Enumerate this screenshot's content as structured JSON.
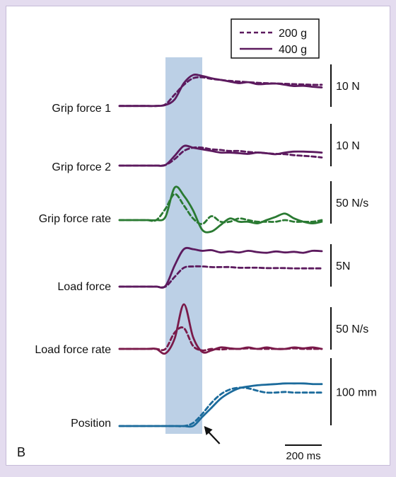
{
  "panel_label": "B",
  "colors": {
    "frame": "#e4dcef",
    "shade": "#bcd0e6",
    "purple": "#5c1a5e",
    "green": "#2a7a32",
    "maroon": "#7a1a4a",
    "blue": "#1c6b9c"
  },
  "chart_data": {
    "type": "line",
    "x_unit": "ms",
    "x": [
      -250,
      -200,
      -150,
      -100,
      -50,
      0,
      50,
      100,
      150,
      200,
      250,
      300,
      350,
      400,
      450,
      500,
      550,
      600,
      650,
      700,
      750,
      800,
      850
    ],
    "highlight": {
      "x0": 0,
      "x1": 200
    },
    "arrow_x": 210,
    "legend": {
      "placement": "top-right",
      "entries": [
        {
          "label": "200 g",
          "style": "dashed"
        },
        {
          "label": "400 g",
          "style": "solid"
        }
      ]
    },
    "time_scale_bar": {
      "label": "200 ms",
      "duration": 200
    },
    "panels": [
      {
        "label": "Grip force 1",
        "scale_label": "10 N",
        "color": "#5c1a5e",
        "series": [
          {
            "name": "200 g",
            "values": [
              0.05,
              0.05,
              0.05,
              0.05,
              0.05,
              0.1,
              0.4,
              0.7,
              0.9,
              0.93,
              0.88,
              0.85,
              0.82,
              0.8,
              0.78,
              0.76,
              0.75,
              0.74,
              0.73,
              0.72,
              0.71,
              0.7,
              0.7
            ]
          },
          {
            "name": "400 g",
            "values": [
              0.05,
              0.05,
              0.05,
              0.05,
              0.05,
              0.08,
              0.25,
              0.75,
              1.0,
              0.97,
              0.9,
              0.85,
              0.8,
              0.75,
              0.78,
              0.72,
              0.73,
              0.74,
              0.7,
              0.66,
              0.67,
              0.64,
              0.62
            ]
          }
        ]
      },
      {
        "label": "Grip force 2",
        "scale_label": "10 N",
        "color": "#5c1a5e",
        "series": [
          {
            "name": "200 g",
            "values": [
              0.0,
              0.0,
              0.0,
              0.0,
              0.0,
              0.02,
              0.2,
              0.45,
              0.55,
              0.55,
              0.5,
              0.48,
              0.45,
              0.45,
              0.42,
              0.4,
              0.38,
              0.36,
              0.35,
              0.32,
              0.3,
              0.28,
              0.25
            ]
          },
          {
            "name": "400 g",
            "values": [
              0.0,
              0.0,
              0.0,
              0.0,
              0.0,
              0.02,
              0.3,
              0.6,
              0.55,
              0.5,
              0.45,
              0.4,
              0.4,
              0.38,
              0.36,
              0.4,
              0.38,
              0.35,
              0.4,
              0.43,
              0.43,
              0.42,
              0.4
            ]
          }
        ]
      },
      {
        "label": "Grip force rate",
        "scale_label": "50 N/s",
        "color": "#2a7a32",
        "series": [
          {
            "name": "200 g",
            "values": [
              0.0,
              0.0,
              0.0,
              0.0,
              0.0,
              0.35,
              0.8,
              0.45,
              0.05,
              -0.12,
              0.12,
              -0.05,
              -0.05,
              0.05,
              0.0,
              -0.05,
              -0.05,
              -0.05,
              0.0,
              -0.05,
              -0.05,
              -0.05,
              0.0
            ]
          },
          {
            "name": "400 g",
            "values": [
              0.0,
              0.0,
              0.0,
              0.0,
              0.0,
              0.1,
              1.0,
              0.75,
              0.3,
              -0.3,
              -0.35,
              -0.15,
              0.05,
              -0.05,
              -0.05,
              -0.1,
              0.0,
              0.1,
              0.2,
              0.05,
              -0.05,
              -0.1,
              -0.05
            ]
          }
        ]
      },
      {
        "label": "Load force",
        "scale_label": "5N",
        "color": "#5c1a5e",
        "series": [
          {
            "name": "200 g",
            "values": [
              0.0,
              0.0,
              0.0,
              0.0,
              0.0,
              0.0,
              0.3,
              0.58,
              0.62,
              0.62,
              0.6,
              0.6,
              0.6,
              0.58,
              0.58,
              0.58,
              0.57,
              0.57,
              0.57,
              0.56,
              0.56,
              0.56,
              0.56
            ]
          },
          {
            "name": "400 g",
            "values": [
              0.0,
              0.0,
              0.0,
              0.0,
              0.0,
              0.02,
              0.65,
              1.15,
              1.15,
              1.1,
              1.12,
              1.05,
              1.08,
              1.05,
              1.1,
              1.06,
              1.04,
              1.08,
              1.05,
              1.07,
              1.04,
              1.1,
              1.09
            ]
          }
        ]
      },
      {
        "label": "Load force rate",
        "scale_label": "50 N/s",
        "color": "#7a1a4a",
        "series": [
          {
            "name": "200 g",
            "values": [
              0.0,
              0.0,
              0.0,
              0.0,
              0.0,
              0.0,
              0.55,
              0.7,
              0.1,
              -0.05,
              0.0,
              -0.02,
              0.0,
              0.0,
              0.02,
              0.0,
              0.0,
              0.0,
              0.0,
              0.02,
              0.0,
              0.0,
              0.0
            ]
          },
          {
            "name": "400 g",
            "values": [
              0.0,
              0.0,
              0.0,
              0.0,
              0.0,
              -0.15,
              0.35,
              1.5,
              0.4,
              -0.1,
              -0.05,
              0.05,
              0.02,
              0.0,
              0.05,
              0.0,
              0.05,
              0.0,
              0.0,
              0.05,
              0.02,
              0.05,
              0.0
            ]
          }
        ]
      },
      {
        "label": "Position",
        "scale_label": "100 mm",
        "color": "#1c6b9c",
        "series": [
          {
            "name": "200 g",
            "values": [
              0.0,
              0.0,
              0.0,
              0.0,
              0.0,
              0.0,
              0.0,
              0.0,
              0.05,
              0.2,
              0.38,
              0.52,
              0.6,
              0.63,
              0.62,
              0.58,
              0.55,
              0.55,
              0.56,
              0.55,
              0.55,
              0.55,
              0.55
            ]
          },
          {
            "name": "400 g",
            "values": [
              0.0,
              0.0,
              0.0,
              0.0,
              0.0,
              0.0,
              0.0,
              0.0,
              0.0,
              0.15,
              0.3,
              0.45,
              0.55,
              0.62,
              0.65,
              0.67,
              0.68,
              0.69,
              0.7,
              0.7,
              0.7,
              0.69,
              0.69
            ]
          }
        ]
      }
    ]
  }
}
